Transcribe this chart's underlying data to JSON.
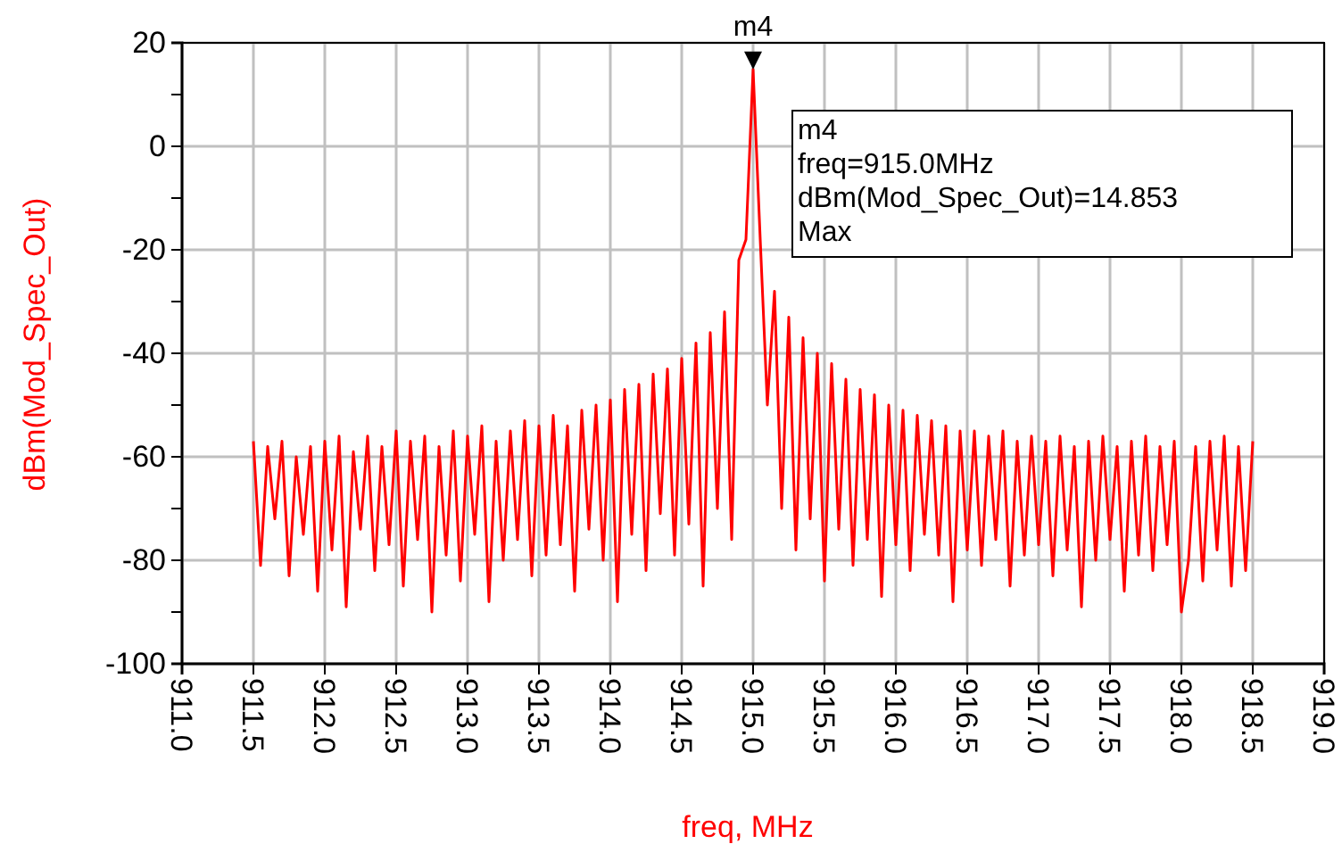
{
  "chart_data": {
    "type": "line",
    "xlabel": "freq, MHz",
    "ylabel": "dBm(Mod_Spec_Out)",
    "xlim": [
      911.0,
      919.0
    ],
    "xticks": [
      {
        "value": 911.0,
        "label": "911.0"
      },
      {
        "value": 911.5,
        "label": "911.5"
      },
      {
        "value": 912.0,
        "label": "912.0"
      },
      {
        "value": 912.5,
        "label": "912.5"
      },
      {
        "value": 913.0,
        "label": "913.0"
      },
      {
        "value": 913.5,
        "label": "913.5"
      },
      {
        "value": 914.0,
        "label": "914.0"
      },
      {
        "value": 914.5,
        "label": "914.5"
      },
      {
        "value": 915.0,
        "label": "915.0"
      },
      {
        "value": 915.5,
        "label": "915.5"
      },
      {
        "value": 916.0,
        "label": "916.0"
      },
      {
        "value": 916.5,
        "label": "916.5"
      },
      {
        "value": 917.0,
        "label": "917.0"
      },
      {
        "value": 917.5,
        "label": "917.5"
      },
      {
        "value": 918.0,
        "label": "918.0"
      },
      {
        "value": 918.5,
        "label": "918.5"
      },
      {
        "value": 919.0,
        "label": "919.0"
      }
    ],
    "ylim": [
      -100,
      20
    ],
    "yticks": [
      -100,
      {
        "value": -90,
        "label": null
      },
      -80,
      {
        "value": -70,
        "label": null
      },
      -60,
      {
        "value": -50,
        "label": null
      },
      -40,
      {
        "value": -30,
        "label": null
      },
      -20,
      {
        "value": -10,
        "label": null
      },
      0,
      {
        "value": 10,
        "label": null
      },
      20
    ],
    "grid": true,
    "marker": "none",
    "line_style": "solid",
    "annotations": [
      {
        "text": "m4",
        "x": 915.0,
        "y": 14.853
      },
      "m4",
      "freq=915.0MHz",
      "dBm(Mod_Spec_Out)=14.853",
      "Max"
    ],
    "series": [
      {
        "color": "#ff0000",
        "x": [
          911.5,
          911.55,
          911.6,
          911.65,
          911.7,
          911.75,
          911.8,
          911.85,
          911.9,
          911.95,
          912.0,
          912.05,
          912.1,
          912.15,
          912.2,
          912.25,
          912.3,
          912.35,
          912.4,
          912.45,
          912.5,
          912.55,
          912.6,
          912.65,
          912.7,
          912.75,
          912.8,
          912.85,
          912.9,
          912.95,
          913.0,
          913.05,
          913.1,
          913.15,
          913.2,
          913.25,
          913.3,
          913.35,
          913.4,
          913.45,
          913.5,
          913.55,
          913.6,
          913.65,
          913.7,
          913.75,
          913.8,
          913.85,
          913.9,
          913.95,
          914.0,
          914.05,
          914.1,
          914.15,
          914.2,
          914.25,
          914.3,
          914.35,
          914.4,
          914.45,
          914.5,
          914.55,
          914.6,
          914.65,
          914.7,
          914.75,
          914.8,
          914.85,
          914.9,
          914.95,
          915.0,
          915.05,
          915.1,
          915.15,
          915.2,
          915.25,
          915.3,
          915.35,
          915.4,
          915.45,
          915.5,
          915.55,
          915.6,
          915.65,
          915.7,
          915.75,
          915.8,
          915.85,
          915.9,
          915.95,
          916.0,
          916.05,
          916.1,
          916.15,
          916.2,
          916.25,
          916.3,
          916.35,
          916.4,
          916.45,
          916.5,
          916.55,
          916.6,
          916.65,
          916.7,
          916.75,
          916.8,
          916.85,
          916.9,
          916.95,
          917.0,
          917.05,
          917.1,
          917.15,
          917.2,
          917.25,
          917.3,
          917.35,
          917.4,
          917.45,
          917.5,
          917.55,
          917.6,
          917.65,
          917.7,
          917.75,
          917.8,
          917.85,
          917.9,
          917.95,
          918.0,
          918.05,
          918.1,
          918.15,
          918.2,
          918.25,
          918.3,
          918.35,
          918.4,
          918.45,
          918.5
        ],
        "values": [
          -57,
          -81,
          -58,
          -72,
          -57,
          -83,
          -60,
          -75,
          -58,
          -86,
          -57,
          -78,
          -56,
          -89,
          -59,
          -74,
          -56,
          -82,
          -58,
          -77,
          -55,
          -85,
          -57,
          -76,
          -56,
          -90,
          -58,
          -79,
          -55,
          -84,
          -56,
          -75,
          -54,
          -88,
          -57,
          -80,
          -55,
          -76,
          -53,
          -83,
          -54,
          -79,
          -52,
          -77,
          -54,
          -86,
          -51,
          -74,
          -50,
          -80,
          -49,
          -88,
          -47,
          -75,
          -46,
          -82,
          -44,
          -71,
          -43,
          -79,
          -41,
          -73,
          -38,
          -85,
          -36,
          -70,
          -32,
          -76,
          -22,
          -18,
          14.853,
          -18,
          -50,
          -28,
          -70,
          -33,
          -78,
          -37,
          -72,
          -40,
          -84,
          -42,
          -74,
          -45,
          -81,
          -47,
          -76,
          -48,
          -87,
          -50,
          -77,
          -51,
          -82,
          -52,
          -75,
          -53,
          -79,
          -54,
          -88,
          -55,
          -78,
          -55,
          -81,
          -56,
          -76,
          -55,
          -85,
          -57,
          -79,
          -56,
          -77,
          -57,
          -83,
          -56,
          -78,
          -58,
          -89,
          -57,
          -80,
          -56,
          -76,
          -58,
          -86,
          -57,
          -79,
          -56,
          -82,
          -58,
          -77,
          -57,
          -90,
          -80,
          -58,
          -84,
          -57,
          -78,
          -56,
          -85,
          -58,
          -82,
          -57
        ]
      }
    ]
  }
}
